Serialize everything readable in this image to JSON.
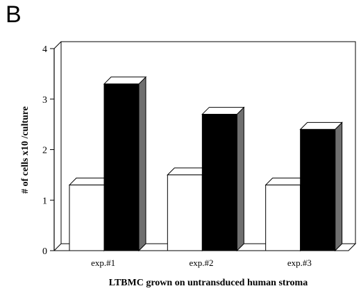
{
  "panel_label": "B",
  "chart_data": {
    "type": "bar",
    "style": "3d",
    "categories": [
      "exp.#1",
      "exp.#2",
      "exp.#3"
    ],
    "series": [
      {
        "values": [
          1.3,
          1.5,
          1.3
        ],
        "color": "#ffffff"
      },
      {
        "values": [
          3.3,
          2.7,
          2.4
        ],
        "color": "#000000"
      }
    ],
    "xlabel": "LTBMC grown on untransduced human stroma",
    "ylabel": "# of cells x10  /culture",
    "ylim": [
      0,
      4
    ],
    "yticks": [
      "0",
      "1",
      "2",
      "3",
      "4"
    ],
    "grid": false,
    "legend": "none"
  }
}
